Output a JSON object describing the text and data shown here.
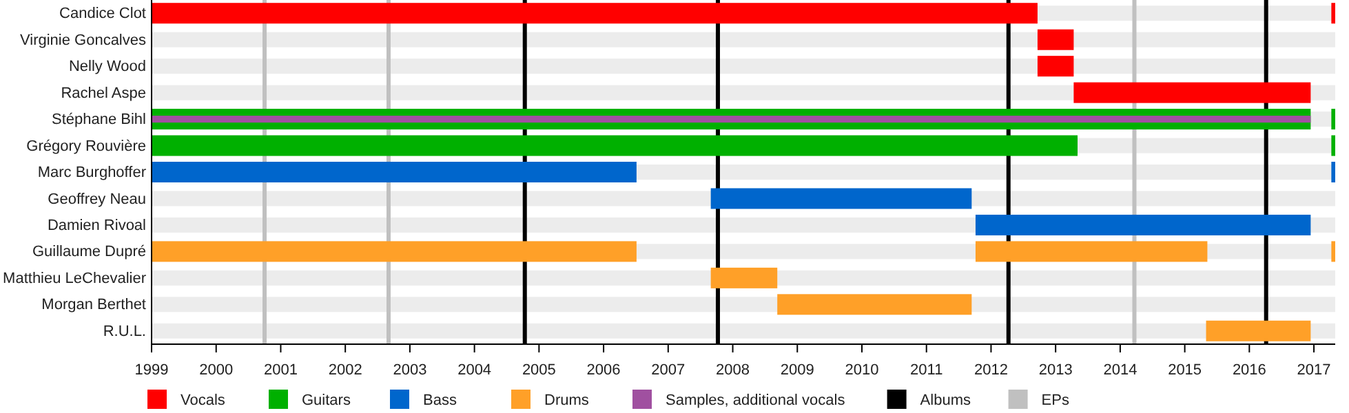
{
  "chart_data": {
    "type": "bar",
    "orientation": "horizontal",
    "categories": [
      "Candice Clot",
      "Virginie Goncalves",
      "Nelly Wood",
      "Rachel Aspe",
      "Stéphane Bihl",
      "Grégory Rouvière",
      "Marc Burghoffer",
      "Geoffrey Neau",
      "Damien Rivoal",
      "Guillaume Dupré",
      "Matthieu LeChevalier",
      "Morgan Berthet",
      "R.U.L."
    ],
    "series": [
      {
        "name": "Vocals",
        "color": "#ff0000",
        "base": [
          1999,
          2012.72,
          2012.72,
          2013.28,
          null,
          null,
          null,
          null,
          null,
          null,
          null,
          null,
          null
        ],
        "values": [
          13.72,
          0.56,
          0.56,
          3.67,
          null,
          null,
          null,
          null,
          null,
          null,
          null,
          null,
          null
        ]
      },
      {
        "color": "#ff0000",
        "base": [
          2017.27,
          null,
          null,
          null,
          null,
          null,
          null,
          null,
          null,
          null,
          null,
          null,
          null
        ],
        "values": [
          0.06,
          null,
          null,
          null,
          null,
          null,
          null,
          null,
          null,
          null,
          null,
          null,
          null
        ]
      },
      {
        "name": "Guitars",
        "color": "#00b000",
        "base": [
          null,
          null,
          null,
          null,
          1999,
          1999,
          null,
          null,
          null,
          null,
          null,
          null,
          null
        ],
        "values": [
          null,
          null,
          null,
          null,
          17.95,
          14.34,
          null,
          null,
          null,
          null,
          null,
          null,
          null
        ]
      },
      {
        "color": "#00b000",
        "base": [
          null,
          null,
          null,
          null,
          2017.27,
          2017.27,
          null,
          null,
          null,
          null,
          null,
          null,
          null
        ],
        "values": [
          null,
          null,
          null,
          null,
          0.06,
          0.06,
          null,
          null,
          null,
          null,
          null,
          null,
          null
        ]
      },
      {
        "name": "Bass",
        "color": "#0066cc",
        "base": [
          null,
          null,
          null,
          null,
          null,
          null,
          1999,
          2007.66,
          2011.76,
          null,
          null,
          null,
          null
        ],
        "values": [
          null,
          null,
          null,
          null,
          null,
          null,
          7.51,
          4.04,
          5.19,
          null,
          null,
          null,
          null
        ]
      },
      {
        "color": "#0066cc",
        "base": [
          null,
          null,
          null,
          null,
          null,
          null,
          2017.27,
          null,
          null,
          null,
          null,
          null,
          null
        ],
        "values": [
          null,
          null,
          null,
          null,
          null,
          null,
          0.06,
          null,
          null,
          null,
          null,
          null,
          null
        ]
      },
      {
        "name": "Drums",
        "color": "#ffa028",
        "base": [
          null,
          null,
          null,
          null,
          null,
          null,
          null,
          null,
          null,
          1999,
          2007.66,
          2008.69,
          2015.33
        ],
        "values": [
          null,
          null,
          null,
          null,
          null,
          null,
          null,
          null,
          null,
          7.51,
          1.03,
          3.01,
          1.62
        ]
      },
      {
        "color": "#ffa028",
        "base": [
          null,
          null,
          null,
          null,
          null,
          null,
          null,
          null,
          null,
          2011.76,
          null,
          null,
          null
        ],
        "values": [
          null,
          null,
          null,
          null,
          null,
          null,
          null,
          null,
          null,
          3.59,
          null,
          null,
          null
        ]
      },
      {
        "color": "#ffa028",
        "base": [
          null,
          null,
          null,
          null,
          null,
          null,
          null,
          null,
          null,
          2017.27,
          null,
          null,
          null
        ],
        "values": [
          null,
          null,
          null,
          null,
          null,
          null,
          null,
          null,
          null,
          0.06,
          null,
          null,
          null
        ]
      },
      {
        "name": "Samples, additional vocals",
        "color": "#a050a0",
        "base": [
          null,
          null,
          null,
          null,
          1999,
          null,
          null,
          null,
          null,
          null,
          null,
          null,
          null
        ],
        "values": [
          null,
          null,
          null,
          null,
          17.95,
          null,
          null,
          null,
          null,
          null,
          null,
          null,
          null
        ]
      }
    ],
    "xlim": [
      1999,
      2017.33
    ],
    "xticks": [
      1999,
      2000,
      2001,
      2002,
      2003,
      2004,
      2005,
      2006,
      2007,
      2008,
      2009,
      2010,
      2011,
      2012,
      2013,
      2014,
      2015,
      2016,
      2017
    ],
    "ref_lines": [
      {
        "axis": "x",
        "value": 2004.78,
        "label": "Albums",
        "color": "#000000"
      },
      {
        "axis": "x",
        "value": 2007.77,
        "color": "#000000"
      },
      {
        "axis": "x",
        "value": 2012.27,
        "color": "#000000"
      },
      {
        "axis": "x",
        "value": 2016.26,
        "color": "#000000"
      },
      {
        "axis": "x",
        "value": 2000.75,
        "label": "EPs",
        "color": "#c0c0c0"
      },
      {
        "axis": "x",
        "value": 2002.67,
        "color": "#c0c0c0"
      },
      {
        "axis": "x",
        "value": 2014.22,
        "color": "#c0c0c0"
      }
    ],
    "legend": "bottom"
  }
}
